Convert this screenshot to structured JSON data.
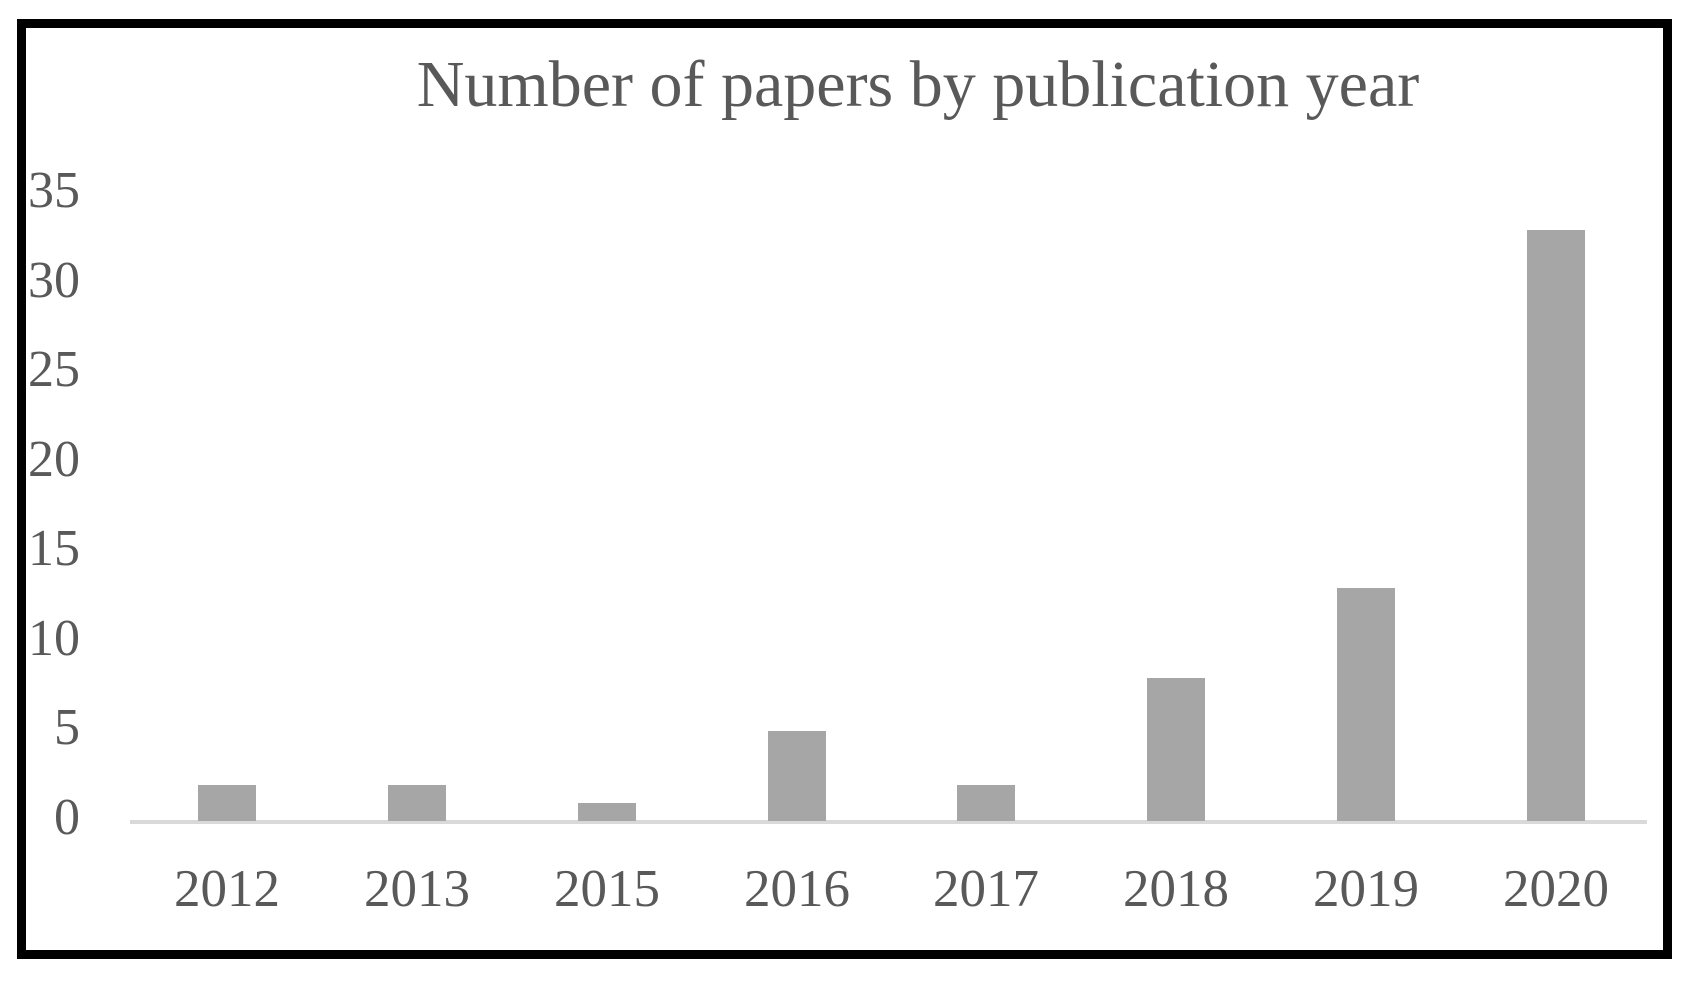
{
  "figure": {
    "border_color": "#000000",
    "background_color": "#ffffff"
  },
  "chart_data": {
    "type": "bar",
    "title": "Number of papers by publication year",
    "categories": [
      "2012",
      "2013",
      "2015",
      "2016",
      "2017",
      "2018",
      "2019",
      "2020"
    ],
    "values": [
      2,
      2,
      1,
      5,
      2,
      8,
      13,
      33
    ],
    "xlabel": "",
    "ylabel": "",
    "y_ticks": [
      0,
      5,
      10,
      15,
      20,
      25,
      30,
      35
    ],
    "ylim": [
      0,
      35
    ],
    "grid": false,
    "legend": "none",
    "bar_color": "#a6a6a6",
    "axis_line_color": "#d9d9d9",
    "text_color": "#595959"
  }
}
